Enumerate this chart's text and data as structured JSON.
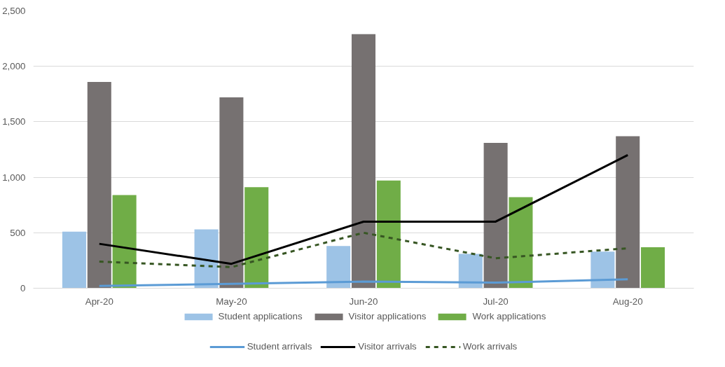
{
  "chart_data": {
    "type": "bar",
    "categories": [
      "Apr-20",
      "May-20",
      "Jun-20",
      "Jul-20",
      "Aug-20"
    ],
    "series": [
      {
        "name": "Student applications",
        "color": "#9dc3e6",
        "values": [
          510,
          530,
          380,
          310,
          330
        ]
      },
      {
        "name": "Visitor applications",
        "color": "#767171",
        "values": [
          1860,
          1720,
          2290,
          1310,
          1370
        ]
      },
      {
        "name": "Work applications",
        "color": "#70ad47",
        "values": [
          840,
          910,
          970,
          820,
          370
        ]
      },
      {
        "name": "Student arrivals",
        "type": "line",
        "color": "#5b9bd5",
        "line_style": "solid",
        "values": [
          20,
          40,
          60,
          50,
          80
        ]
      },
      {
        "name": "Visitor arrivals",
        "type": "line",
        "color": "#000000",
        "line_style": "solid",
        "values": [
          400,
          220,
          600,
          600,
          1200
        ]
      },
      {
        "name": "Work arrivals",
        "type": "line",
        "color": "#375623",
        "line_style": "dashed",
        "values": [
          240,
          190,
          500,
          270,
          360
        ]
      }
    ],
    "ylim": [
      0,
      2500
    ],
    "yticks": [
      0,
      500,
      {
        "value": 1000,
        "label": "1,000"
      },
      {
        "value": 1500,
        "label": "1,500"
      },
      {
        "value": 2000,
        "label": "2,000"
      },
      {
        "value": 2500,
        "label": "2,500"
      }
    ],
    "grid": "y",
    "legend": "bottom"
  }
}
